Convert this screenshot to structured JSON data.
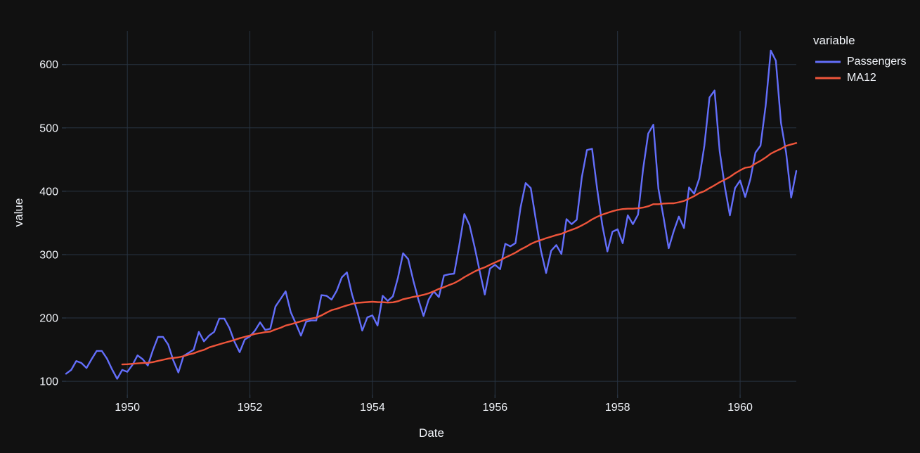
{
  "theme": {
    "background": "#111111",
    "grid": "#283442",
    "text": "#f2f5fa"
  },
  "legend": {
    "title": "variable"
  },
  "chart_data": {
    "type": "line",
    "title": "",
    "xlabel": "Date",
    "ylabel": "value",
    "legend_title": "variable",
    "legend_position": "right",
    "grid": true,
    "x_unit": "decimal-year, monthly points (1/12 step), Jan 1949 - Dec 1960",
    "xlim": [
      1949.0,
      1960.9167
    ],
    "ylim": [
      79,
      653
    ],
    "xticks": [
      1950,
      1952,
      1954,
      1956,
      1958,
      1960
    ],
    "yticks": [
      100,
      200,
      300,
      400,
      500,
      600
    ],
    "x_start_year": 1949,
    "points_per_year": 12,
    "series": [
      {
        "name": "Passengers",
        "color": "#636efa",
        "start_index": 0,
        "values": [
          112,
          118,
          132,
          129,
          121,
          135,
          148,
          148,
          136,
          119,
          104,
          118,
          115,
          126,
          141,
          135,
          125,
          149,
          170,
          170,
          158,
          133,
          114,
          140,
          145,
          150,
          178,
          163,
          172,
          178,
          199,
          199,
          184,
          162,
          146,
          166,
          171,
          180,
          193,
          181,
          183,
          218,
          230,
          242,
          209,
          191,
          172,
          194,
          196,
          196,
          236,
          235,
          229,
          243,
          264,
          272,
          237,
          211,
          180,
          201,
          204,
          188,
          235,
          227,
          234,
          264,
          302,
          293,
          259,
          229,
          203,
          229,
          242,
          233,
          267,
          269,
          270,
          315,
          364,
          347,
          312,
          274,
          237,
          278,
          284,
          277,
          317,
          313,
          318,
          374,
          413,
          405,
          355,
          306,
          271,
          306,
          315,
          301,
          356,
          348,
          355,
          422,
          465,
          467,
          404,
          347,
          305,
          336,
          340,
          318,
          362,
          348,
          363,
          435,
          491,
          505,
          404,
          359,
          310,
          337,
          360,
          342,
          406,
          396,
          420,
          472,
          548,
          559,
          463,
          407,
          362,
          405,
          417,
          391,
          419,
          461,
          472,
          535,
          622,
          606,
          508,
          461,
          390,
          432
        ]
      },
      {
        "name": "MA12",
        "color": "#EF553B",
        "start_index": 11,
        "values": [
          126.67,
          126.92,
          127.58,
          128.33,
          128.83,
          129.17,
          130.33,
          132.17,
          134.0,
          135.83,
          137.0,
          137.83,
          139.67,
          142.17,
          144.17,
          147.25,
          149.58,
          153.5,
          155.92,
          158.33,
          160.75,
          162.92,
          165.33,
          168.0,
          170.17,
          172.33,
          174.83,
          176.08,
          177.58,
          178.5,
          181.83,
          184.42,
          188.0,
          190.08,
          192.5,
          194.67,
          197.0,
          199.08,
          200.42,
          204.0,
          208.5,
          212.33,
          214.42,
          217.25,
          219.75,
          222.08,
          223.75,
          224.42,
          225.0,
          225.67,
          225.0,
          224.92,
          224.25,
          224.67,
          226.42,
          229.58,
          231.33,
          233.17,
          234.67,
          236.58,
          238.92,
          242.08,
          245.83,
          248.5,
          252.0,
          255.0,
          259.25,
          264.42,
          268.92,
          273.33,
          277.08,
          279.92,
          284.0,
          287.5,
          291.17,
          295.33,
          299.0,
          303.0,
          307.92,
          312.0,
          316.83,
          320.42,
          323.08,
          325.92,
          328.25,
          330.83,
          332.83,
          336.08,
          339.0,
          342.08,
          346.08,
          350.42,
          355.58,
          359.67,
          363.08,
          365.92,
          368.42,
          370.5,
          371.92,
          372.42,
          372.42,
          373.08,
          374.17,
          376.33,
          379.5,
          379.5,
          380.5,
          380.92,
          381.0,
          382.67,
          384.67,
          388.33,
          392.33,
          397.08,
          400.17,
          404.92,
          409.42,
          414.33,
          418.33,
          422.67,
          428.33,
          433.08,
          437.17,
          438.25,
          443.67,
          448.0,
          453.25,
          459.42,
          463.33,
          467.08,
          471.58,
          473.92,
          476.17
        ]
      }
    ]
  }
}
